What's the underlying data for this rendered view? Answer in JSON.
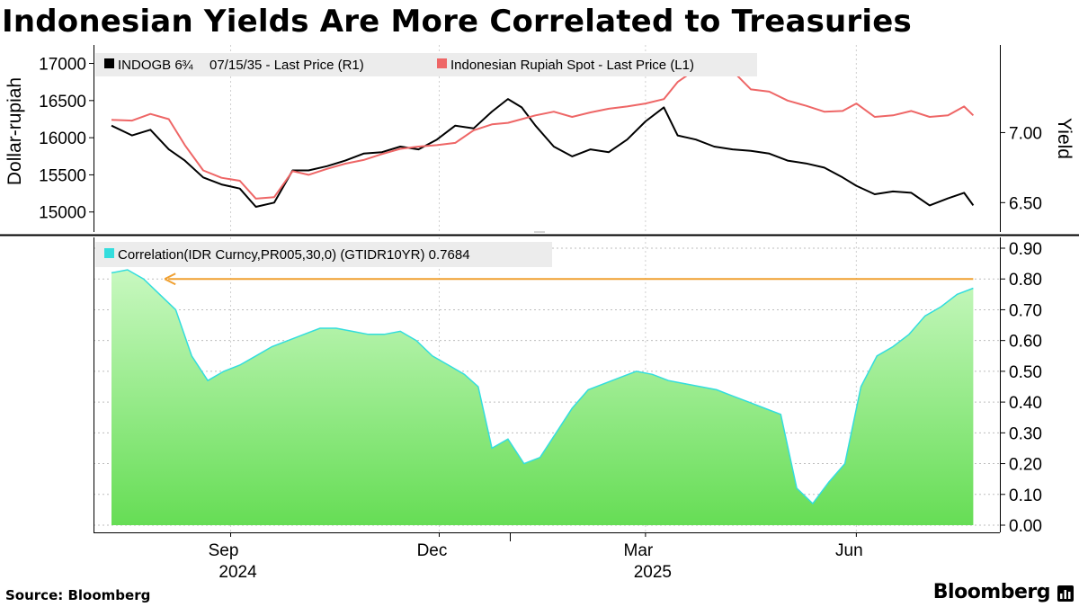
{
  "header": {
    "title": "Indonesian Yields Are More Correlated to Treasuries"
  },
  "footer": {
    "source": "Source: Bloomberg",
    "brand": "Bloomberg"
  },
  "colors": {
    "rupiah": "#ee6666",
    "bond": "#000000",
    "corr_line": "#33dddd",
    "corr_fill_top": "#c8f8c0",
    "corr_fill_bottom": "#66dd55",
    "arrow": "#f0a030",
    "legend_bg": "#ececec"
  },
  "x_axis": {
    "month_ticks": [
      {
        "label": "Sep",
        "date": "2024-09-01"
      },
      {
        "label": "Dec",
        "date": "2024-12-01"
      },
      {
        "label": "Mar",
        "date": "2025-03-01"
      },
      {
        "label": "Jun",
        "date": "2025-06-01"
      }
    ],
    "year_labels": [
      {
        "label": "2024",
        "date": "2024-09-01"
      },
      {
        "label": "2025",
        "date": "2025-03-01"
      }
    ],
    "range": [
      "2024-07-11",
      "2025-07-25"
    ]
  },
  "chart_data": [
    {
      "type": "line",
      "left_axis": {
        "label": "Dollar-rupiah",
        "ylim": [
          14900,
          17200
        ],
        "ticks": [
          "15000",
          "15500",
          "16000",
          "16500",
          "17000"
        ]
      },
      "right_axis": {
        "label": "Yield",
        "ylim": [
          6.38,
          7.6
        ],
        "ticks": [
          "6.50",
          "7.00"
        ]
      },
      "series": [
        {
          "name": "INDOGB 6 ¾ 07/15/35 - Last Price (R1)",
          "legend_prefix": "INDOGB 6",
          "legend_fraction": "¾",
          "legend_suffix": "07/15/35 - Last Price (R1)",
          "axis": "right",
          "points": [
            [
              "2024-07-11",
              7.05
            ],
            [
              "2024-07-20",
              6.98
            ],
            [
              "2024-07-28",
              7.02
            ],
            [
              "2024-08-05",
              6.88
            ],
            [
              "2024-08-12",
              6.8
            ],
            [
              "2024-08-20",
              6.68
            ],
            [
              "2024-08-28",
              6.63
            ],
            [
              "2024-09-05",
              6.6
            ],
            [
              "2024-09-12",
              6.47
            ],
            [
              "2024-09-20",
              6.5
            ],
            [
              "2024-09-28",
              6.73
            ],
            [
              "2024-10-05",
              6.73
            ],
            [
              "2024-10-13",
              6.76
            ],
            [
              "2024-10-21",
              6.8
            ],
            [
              "2024-10-29",
              6.85
            ],
            [
              "2024-11-06",
              6.86
            ],
            [
              "2024-11-14",
              6.9
            ],
            [
              "2024-11-22",
              6.88
            ],
            [
              "2024-11-30",
              6.95
            ],
            [
              "2024-12-08",
              7.05
            ],
            [
              "2024-12-16",
              7.03
            ],
            [
              "2024-12-24",
              7.15
            ],
            [
              "2024-12-31",
              7.24
            ],
            [
              "2025-01-06",
              7.18
            ],
            [
              "2025-01-12",
              7.05
            ],
            [
              "2025-01-20",
              6.9
            ],
            [
              "2025-01-28",
              6.83
            ],
            [
              "2025-02-05",
              6.88
            ],
            [
              "2025-02-13",
              6.86
            ],
            [
              "2025-02-21",
              6.95
            ],
            [
              "2025-03-01",
              7.08
            ],
            [
              "2025-03-09",
              7.18
            ],
            [
              "2025-03-15",
              6.98
            ],
            [
              "2025-03-23",
              6.95
            ],
            [
              "2025-03-31",
              6.9
            ],
            [
              "2025-04-08",
              6.88
            ],
            [
              "2025-04-16",
              6.87
            ],
            [
              "2025-04-24",
              6.85
            ],
            [
              "2025-05-02",
              6.8
            ],
            [
              "2025-05-10",
              6.78
            ],
            [
              "2025-05-18",
              6.75
            ],
            [
              "2025-05-26",
              6.68
            ],
            [
              "2025-06-01",
              6.62
            ],
            [
              "2025-06-09",
              6.56
            ],
            [
              "2025-06-17",
              6.58
            ],
            [
              "2025-06-25",
              6.57
            ],
            [
              "2025-07-03",
              6.48
            ],
            [
              "2025-07-11",
              6.53
            ],
            [
              "2025-07-18",
              6.57
            ],
            [
              "2025-07-22",
              6.48
            ]
          ]
        },
        {
          "name": "Indonesian Rupiah Spot - Last Price (L1)",
          "axis": "left",
          "points": [
            [
              "2024-07-11",
              16240
            ],
            [
              "2024-07-20",
              16230
            ],
            [
              "2024-07-28",
              16320
            ],
            [
              "2024-08-05",
              16250
            ],
            [
              "2024-08-12",
              15900
            ],
            [
              "2024-08-20",
              15560
            ],
            [
              "2024-08-28",
              15460
            ],
            [
              "2024-09-05",
              15420
            ],
            [
              "2024-09-12",
              15180
            ],
            [
              "2024-09-20",
              15200
            ],
            [
              "2024-09-28",
              15550
            ],
            [
              "2024-10-05",
              15500
            ],
            [
              "2024-10-13",
              15580
            ],
            [
              "2024-10-21",
              15650
            ],
            [
              "2024-10-29",
              15700
            ],
            [
              "2024-11-06",
              15780
            ],
            [
              "2024-11-14",
              15850
            ],
            [
              "2024-11-22",
              15880
            ],
            [
              "2024-11-30",
              15900
            ],
            [
              "2024-12-08",
              15930
            ],
            [
              "2024-12-16",
              16100
            ],
            [
              "2024-12-24",
              16180
            ],
            [
              "2024-12-31",
              16200
            ],
            [
              "2025-01-06",
              16250
            ],
            [
              "2025-01-12",
              16300
            ],
            [
              "2025-01-20",
              16350
            ],
            [
              "2025-01-28",
              16280
            ],
            [
              "2025-02-05",
              16340
            ],
            [
              "2025-02-13",
              16390
            ],
            [
              "2025-02-21",
              16420
            ],
            [
              "2025-03-01",
              16460
            ],
            [
              "2025-03-09",
              16520
            ],
            [
              "2025-03-15",
              16750
            ],
            [
              "2025-03-23",
              16920
            ],
            [
              "2025-03-31",
              16890
            ],
            [
              "2025-04-08",
              16900
            ],
            [
              "2025-04-16",
              16650
            ],
            [
              "2025-04-24",
              16620
            ],
            [
              "2025-05-02",
              16500
            ],
            [
              "2025-05-10",
              16430
            ],
            [
              "2025-05-18",
              16350
            ],
            [
              "2025-05-26",
              16360
            ],
            [
              "2025-06-01",
              16460
            ],
            [
              "2025-06-09",
              16280
            ],
            [
              "2025-06-17",
              16300
            ],
            [
              "2025-06-25",
              16360
            ],
            [
              "2025-07-03",
              16280
            ],
            [
              "2025-07-11",
              16300
            ],
            [
              "2025-07-18",
              16420
            ],
            [
              "2025-07-22",
              16300
            ]
          ]
        }
      ]
    },
    {
      "type": "area",
      "right_axis": {
        "ylim": [
          0,
          0.9
        ],
        "ticks": [
          "0.00",
          "0.10",
          "0.20",
          "0.30",
          "0.40",
          "0.50",
          "0.60",
          "0.70",
          "0.80",
          "0.90"
        ]
      },
      "series": [
        {
          "name": "Correlation(IDR Curncy,PR005,30,0) (GTIDR10YR) 0.7684",
          "points": [
            [
              "2024-07-11",
              0.82
            ],
            [
              "2024-07-18",
              0.83
            ],
            [
              "2024-07-25",
              0.8
            ],
            [
              "2024-08-01",
              0.75
            ],
            [
              "2024-08-08",
              0.7
            ],
            [
              "2024-08-15",
              0.55
            ],
            [
              "2024-08-22",
              0.47
            ],
            [
              "2024-08-29",
              0.5
            ],
            [
              "2024-09-05",
              0.52
            ],
            [
              "2024-09-12",
              0.55
            ],
            [
              "2024-09-19",
              0.58
            ],
            [
              "2024-09-26",
              0.6
            ],
            [
              "2024-10-03",
              0.62
            ],
            [
              "2024-10-10",
              0.64
            ],
            [
              "2024-10-17",
              0.64
            ],
            [
              "2024-10-24",
              0.63
            ],
            [
              "2024-10-31",
              0.62
            ],
            [
              "2024-11-07",
              0.62
            ],
            [
              "2024-11-14",
              0.63
            ],
            [
              "2024-11-21",
              0.6
            ],
            [
              "2024-11-28",
              0.55
            ],
            [
              "2024-12-05",
              0.52
            ],
            [
              "2024-12-12",
              0.49
            ],
            [
              "2024-12-18",
              0.45
            ],
            [
              "2024-12-24",
              0.25
            ],
            [
              "2024-12-31",
              0.28
            ],
            [
              "2025-01-07",
              0.2
            ],
            [
              "2025-01-14",
              0.22
            ],
            [
              "2025-01-21",
              0.3
            ],
            [
              "2025-01-28",
              0.38
            ],
            [
              "2025-02-04",
              0.44
            ],
            [
              "2025-02-11",
              0.46
            ],
            [
              "2025-02-18",
              0.48
            ],
            [
              "2025-02-25",
              0.5
            ],
            [
              "2025-03-04",
              0.49
            ],
            [
              "2025-03-11",
              0.47
            ],
            [
              "2025-03-18",
              0.46
            ],
            [
              "2025-03-25",
              0.45
            ],
            [
              "2025-04-01",
              0.44
            ],
            [
              "2025-04-08",
              0.42
            ],
            [
              "2025-04-15",
              0.4
            ],
            [
              "2025-04-22",
              0.38
            ],
            [
              "2025-04-29",
              0.36
            ],
            [
              "2025-05-06",
              0.12
            ],
            [
              "2025-05-13",
              0.07
            ],
            [
              "2025-05-20",
              0.14
            ],
            [
              "2025-05-27",
              0.2
            ],
            [
              "2025-06-03",
              0.45
            ],
            [
              "2025-06-10",
              0.55
            ],
            [
              "2025-06-17",
              0.58
            ],
            [
              "2025-06-24",
              0.62
            ],
            [
              "2025-07-01",
              0.68
            ],
            [
              "2025-07-08",
              0.71
            ],
            [
              "2025-07-15",
              0.75
            ],
            [
              "2025-07-22",
              0.77
            ]
          ]
        }
      ],
      "annotation": {
        "type": "arrow",
        "y": 0.8,
        "from": "2025-07-22",
        "to": "2024-08-04"
      }
    }
  ]
}
